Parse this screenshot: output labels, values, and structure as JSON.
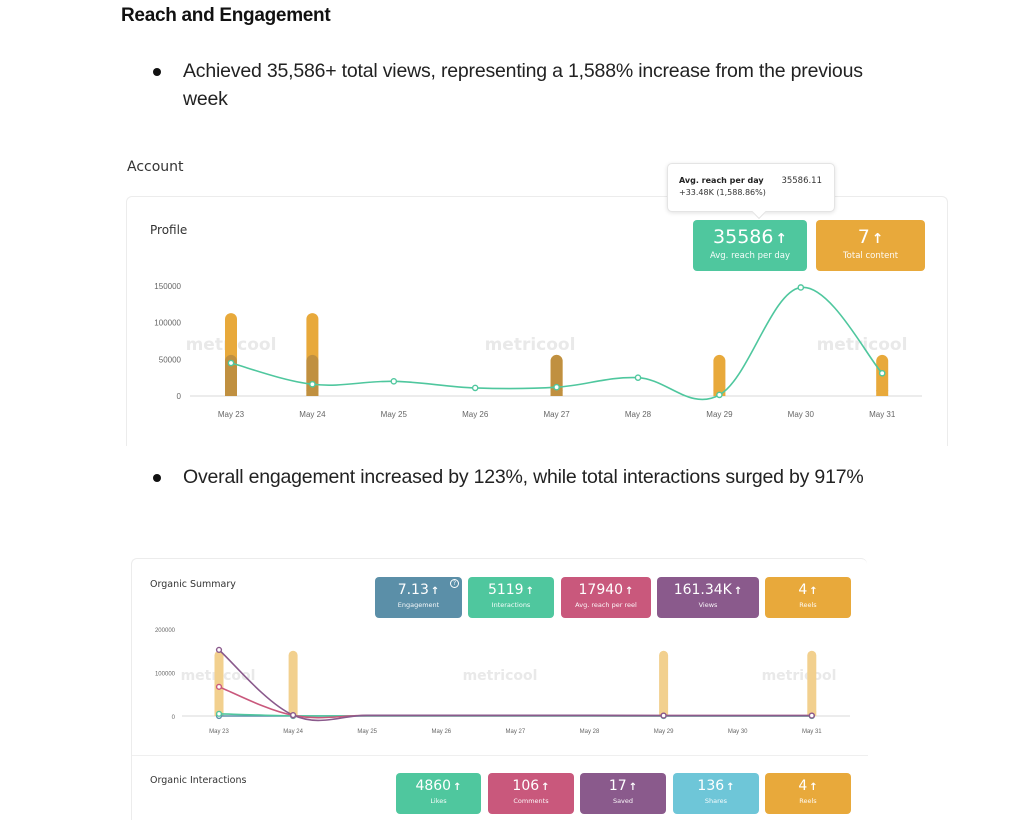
{
  "document": {
    "heading": "Reach and Engagement",
    "bullets": [
      "Achieved 35,586+ total views, representing a 1,588% increase from the previous week",
      "Overall engagement increased by 123%, while total interactions surged by 917%"
    ],
    "section_label": "Account"
  },
  "profile_card": {
    "title": "Profile",
    "watermark": "metricool",
    "kpis": [
      {
        "value": "35586",
        "label": "Avg. reach per day",
        "color": "#4fc79e",
        "trend": "up"
      },
      {
        "value": "7",
        "label": "Total content",
        "color": "#e8a93b",
        "trend": "up"
      }
    ],
    "tooltip": {
      "label": "Avg. reach per day",
      "value": "35586.11",
      "delta": "+33.48K (1,588.86%)"
    }
  },
  "organic_summary": {
    "title": "Organic Summary",
    "watermark": "metricool",
    "kpis": [
      {
        "value": "7.13",
        "label": "Engagement",
        "color": "#5b8fa8",
        "trend": "up",
        "help": "?"
      },
      {
        "value": "5119",
        "label": "Interactions",
        "color": "#4fc79e",
        "trend": "up"
      },
      {
        "value": "17940",
        "label": "Avg. reach per reel",
        "color": "#c9587c",
        "trend": "up"
      },
      {
        "value": "161.34K",
        "label": "Views",
        "color": "#8a5a8c",
        "trend": "up"
      },
      {
        "value": "4",
        "label": "Reels",
        "color": "#e8a93b",
        "trend": "up"
      }
    ]
  },
  "organic_interactions": {
    "title": "Organic Interactions",
    "kpis": [
      {
        "value": "4860",
        "label": "Likes",
        "color": "#4fc79e",
        "trend": "up"
      },
      {
        "value": "106",
        "label": "Comments",
        "color": "#c9587c",
        "trend": "up"
      },
      {
        "value": "17",
        "label": "Saved",
        "color": "#8a5a8c",
        "trend": "up"
      },
      {
        "value": "136",
        "label": "Shares",
        "color": "#6ec6d8",
        "trend": "up"
      },
      {
        "value": "4",
        "label": "Reels",
        "color": "#e8a93b",
        "trend": "up"
      }
    ]
  },
  "icons": {
    "trend_up": "↑",
    "help": "?"
  },
  "chart_data": [
    {
      "type": "line",
      "title": "Profile",
      "categories": [
        "May 23",
        "May 24",
        "May 25",
        "May 26",
        "May 27",
        "May 28",
        "May 29",
        "May 30",
        "May 31"
      ],
      "ylim": [
        0,
        150000
      ],
      "yticks": [
        0,
        50000,
        100000,
        150000
      ],
      "grid": false,
      "series": [
        {
          "name": "Avg. reach per day",
          "kind": "line",
          "color": "#4fc79e",
          "values": [
            45000,
            16000,
            20000,
            11000,
            12000,
            25000,
            1500,
            148000,
            31000
          ]
        },
        {
          "name": "Total content",
          "kind": "bar",
          "color": "#e8a93b",
          "values": [
            113000,
            113000,
            0,
            0,
            56000,
            0,
            56000,
            0,
            56000
          ]
        },
        {
          "name": "Total content (overlay)",
          "kind": "bar",
          "color": "#c09040",
          "values": [
            56000,
            56000,
            0,
            0,
            56000,
            0,
            0,
            0,
            0
          ]
        }
      ]
    },
    {
      "type": "line",
      "title": "Organic Summary",
      "categories": [
        "May 23",
        "May 24",
        "May 25",
        "May 26",
        "May 27",
        "May 28",
        "May 29",
        "May 30",
        "May 31"
      ],
      "ylim": [
        0,
        200000
      ],
      "yticks": [
        0,
        100000,
        200000
      ],
      "grid": false,
      "series": [
        {
          "name": "Reels",
          "kind": "bar",
          "color": "#f2d08e",
          "values": [
            150000,
            150000,
            0,
            0,
            0,
            0,
            150000,
            0,
            150000
          ]
        },
        {
          "name": "Views",
          "kind": "line",
          "color": "#8a5a8c",
          "values": [
            152000,
            2000,
            1500,
            1500,
            1500,
            1500,
            1000,
            1000,
            1000
          ]
        },
        {
          "name": "Avg. reach per reel",
          "kind": "line",
          "color": "#c9587c",
          "values": [
            67000,
            1500,
            1200,
            1200,
            1200,
            1200,
            1000,
            1000,
            1000
          ]
        },
        {
          "name": "Interactions",
          "kind": "line",
          "color": "#4fc79e",
          "values": [
            5000,
            500,
            300,
            300,
            300,
            300,
            200,
            200,
            200
          ]
        },
        {
          "name": "Engagement",
          "kind": "line",
          "color": "#5b8fa8",
          "values": [
            0,
            0,
            0,
            0,
            0,
            0,
            0,
            0,
            0
          ]
        }
      ],
      "markers_at": [
        0,
        1,
        6,
        8
      ]
    }
  ]
}
